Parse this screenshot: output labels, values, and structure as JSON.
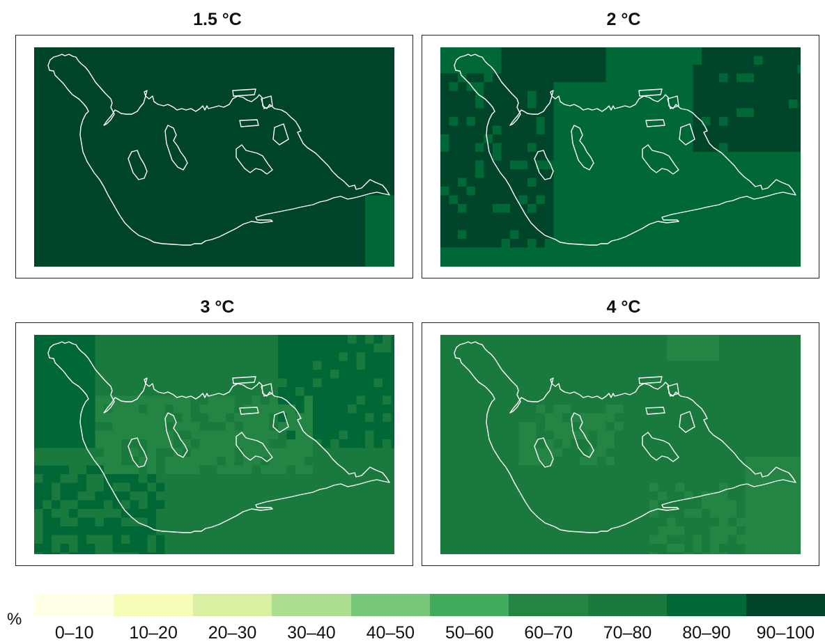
{
  "panels": [
    {
      "title": "1.5 °C",
      "base": 9
    },
    {
      "title": "2 °C",
      "base": 8
    },
    {
      "title": "3 °C",
      "base": 7
    },
    {
      "title": "4 °C",
      "base": 7
    }
  ],
  "legend": {
    "unit": "%",
    "classes": [
      "0–10",
      "10–20",
      "20–30",
      "30–40",
      "40–50",
      "50–60",
      "60–70",
      "70–80",
      "80–90",
      "90–100"
    ],
    "colors": [
      "#ffffe5",
      "#f7fcb9",
      "#d9f0a3",
      "#addd8e",
      "#78c679",
      "#41ab5d",
      "#238443",
      "#1a7a3d",
      "#006837",
      "#004529"
    ]
  }
}
